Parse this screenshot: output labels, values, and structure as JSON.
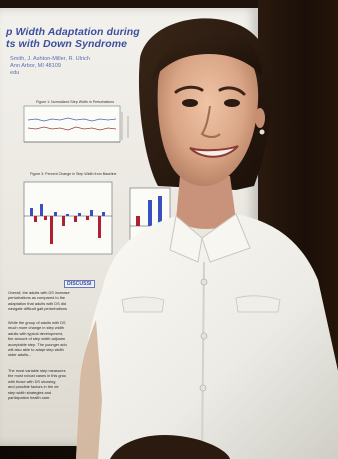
{
  "poster": {
    "title_lines": [
      "p Width Adaptation during",
      "ts with Down Syndrome"
    ],
    "author_lines": [
      "Smith, J. Ashton-Miller, R. Ulrich",
      "Ann Arbor, MI 48109",
      "edu"
    ],
    "chart_title_top": "Figure 1: Normalized Step Width in Perturbations",
    "chart_title_mid": "Figure 3: Percent Change in Step Width from Baseline",
    "section_heading": "DISCUSSI",
    "paragraphs": [
      [
        "Overall, the adults with DS increase",
        "perturbations as compared to the",
        "adaptation that adults with DS did",
        "navigate difficult gait perturbations"
      ],
      [
        "While the group of adults with DS",
        "much more change in step width",
        "adults with typical development,",
        "the amount of step width adjustm",
        "acceptable step. The younger adu",
        "will also able to adapt step width",
        "older adults..."
      ],
      [
        "The most variable step measures",
        "the most robust cases in this grou",
        "with those with DS showing",
        "and possible factors in the de",
        "step width strategies and",
        "participation health care."
      ]
    ]
  },
  "colors": {
    "poster_text_blue": "#3d4f9f",
    "bar_blue": "#3b4fbf",
    "bar_red": "#b02030",
    "shirt": "#f2f1ec",
    "skin": "#d9a98a",
    "hair": "#2a1a10",
    "background": "#1c120a"
  }
}
